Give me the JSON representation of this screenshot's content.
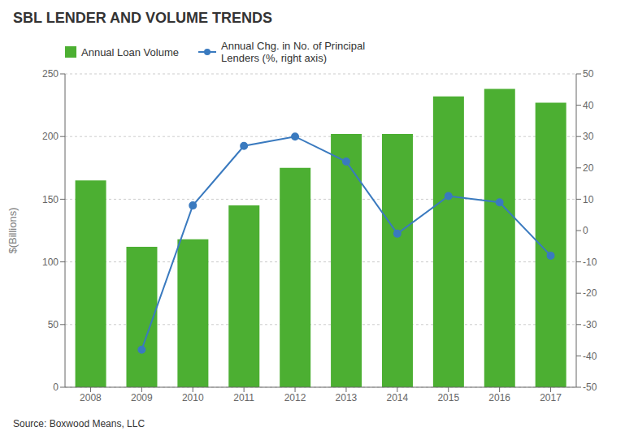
{
  "chart_data": {
    "type": "bar",
    "title": "SBL LENDER AND VOLUME TRENDS",
    "annotations": [
      "Source: Boxwood Means, LLC"
    ],
    "categories": [
      "2008",
      "2009",
      "2010",
      "2011",
      "2012",
      "2013",
      "2014",
      "2015",
      "2016",
      "2017"
    ],
    "series": [
      {
        "name": "Annual Loan Volume",
        "type": "bar",
        "color": "#4caf32",
        "values": [
          165,
          112,
          118,
          145,
          175,
          202,
          202,
          232,
          238,
          227
        ]
      },
      {
        "name": "Annual Chg. in No. of Principal\nLenders (%, right axis)",
        "type": "line",
        "axis": "y2",
        "color": "#3a7abf",
        "marker": "o",
        "values": [
          null,
          -38,
          8,
          27,
          30,
          22,
          -1,
          11,
          9,
          -8
        ]
      }
    ],
    "y_label": "$(Billions)",
    "ylim": [
      0,
      250
    ],
    "yticks": [
      0,
      50,
      100,
      150,
      200,
      250
    ],
    "y2lim": [
      -50,
      50
    ],
    "y2ticks": [
      -50,
      -40,
      -30,
      -20,
      -10,
      0,
      10,
      20,
      30,
      40,
      50
    ],
    "grid": true,
    "legend": "upper left"
  }
}
